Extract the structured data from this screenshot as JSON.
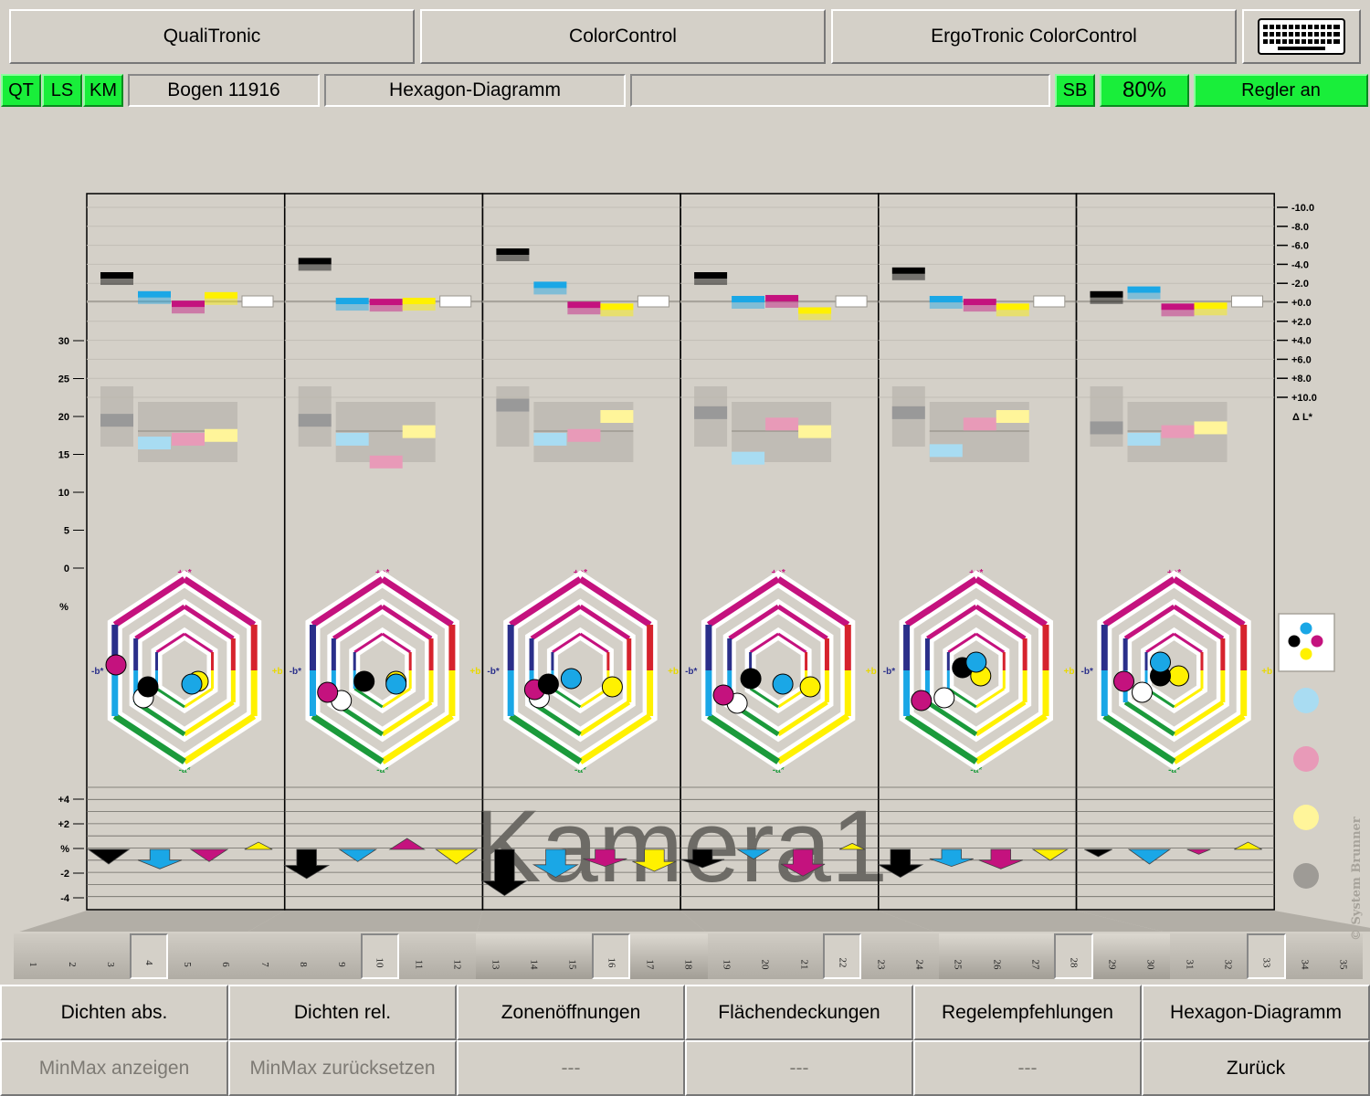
{
  "top_tabs": {
    "qualitronic": "QualiTronic",
    "colorcontrol": "ColorControl",
    "ergotronic": "ErgoTronic ColorControl",
    "keyboard_icon": "keyboard-icon"
  },
  "status_bar": {
    "qt": "QT",
    "ls": "LS",
    "km": "KM",
    "sheet": "Bogen 11916",
    "view": "Hexagon-Diagramm",
    "message": "",
    "sb": "SB",
    "percent": "80%",
    "regler": "Regler an"
  },
  "right_scale": {
    "ticks": [
      "-10.0",
      "-8.0",
      "-6.0",
      "-4.0",
      "-2.0",
      "+0.0",
      "+2.0",
      "+4.0",
      "+6.0",
      "+8.0",
      "+10.0"
    ],
    "label": "Δ L*"
  },
  "left_scale": {
    "ticks": [
      "30",
      "25",
      "20",
      "15",
      "10",
      "5",
      "0"
    ],
    "unit": "%"
  },
  "arrow_scale": {
    "ticks": [
      "+4",
      "+2",
      "%",
      "-2",
      "-4"
    ]
  },
  "hexagon_labels": {
    "top": "+a*",
    "bottom": "-a*",
    "left": "-b*",
    "right": "+b"
  },
  "watermark": "Kamera1",
  "copyright": "© System Brunner",
  "colors": {
    "black": "#000000",
    "cyan": "#1aa7e6",
    "magenta": "#c4127e",
    "yellow": "#fff100",
    "white": "#ffffff",
    "green": "#19ee3a",
    "background": "#d4d0c8"
  },
  "legend_icons": [
    "cmyk-dots-icon",
    "cyan-dot-icon",
    "magenta-dot-icon",
    "yellow-dot-icon",
    "gray-dot-icon"
  ],
  "chart_data": {
    "type": "bar",
    "zones_per_panel": 6,
    "panels": [
      {
        "delta_l": [
          -2.5,
          -0.5,
          0.5,
          -0.4,
          0.0
        ],
        "density": [
          19.5,
          16.5,
          17,
          17.5
        ],
        "hex": {
          "k": [
            -0.4,
            0.3
          ],
          "c": [
            0.08,
            0.25
          ],
          "m": [
            -0.75,
            -0.1
          ],
          "y": [
            0.15,
            0.2
          ],
          "w": [
            -0.45,
            0.5
          ]
        },
        "arrows": [
          -1.2,
          -1.6,
          -1.0,
          0.6,
          0
        ]
      },
      {
        "delta_l": [
          -4.0,
          0.2,
          0.3,
          0.2,
          0.0
        ],
        "density": [
          19.5,
          17,
          14,
          18
        ],
        "hex": {
          "k": [
            -0.2,
            0.2
          ],
          "c": [
            0.15,
            0.25
          ],
          "m": [
            -0.6,
            0.4
          ],
          "y": [
            0.15,
            0.2
          ],
          "w": [
            -0.45,
            0.55
          ]
        },
        "arrows": [
          -2.4,
          -1.0,
          0.9,
          -1.2,
          0
        ]
      },
      {
        "delta_l": [
          -5.0,
          -1.5,
          0.6,
          0.8,
          0.0
        ],
        "density": [
          21.5,
          17,
          17.5,
          20
        ],
        "hex": {
          "k": [
            -0.35,
            0.25
          ],
          "c": [
            -0.1,
            0.15
          ],
          "m": [
            -0.5,
            0.35
          ],
          "y": [
            0.35,
            0.3
          ],
          "w": [
            -0.45,
            0.5
          ]
        },
        "arrows": [
          -3.8,
          -2.3,
          -1.4,
          -1.8,
          0
        ]
      },
      {
        "delta_l": [
          -2.5,
          0.0,
          -0.1,
          1.2,
          0.0
        ],
        "density": [
          20.5,
          14.5,
          19,
          18
        ],
        "hex": {
          "k": [
            -0.3,
            0.15
          ],
          "c": [
            0.05,
            0.25
          ],
          "m": [
            -0.6,
            0.45
          ],
          "y": [
            0.35,
            0.3
          ],
          "w": [
            -0.45,
            0.6
          ]
        },
        "arrows": [
          -1.5,
          -0.8,
          -2.2,
          0.5,
          0
        ]
      },
      {
        "delta_l": [
          -3.0,
          0.0,
          0.3,
          0.8,
          0.0
        ],
        "density": [
          20.5,
          15.5,
          19,
          20
        ],
        "hex": {
          "k": [
            -0.15,
            -0.05
          ],
          "c": [
            0.0,
            -0.15
          ],
          "m": [
            -0.6,
            0.55
          ],
          "y": [
            0.05,
            0.1
          ],
          "w": [
            -0.35,
            0.5
          ]
        },
        "arrows": [
          -2.3,
          -1.4,
          -1.6,
          -0.9,
          0
        ]
      },
      {
        "delta_l": [
          -0.5,
          -1.0,
          0.8,
          0.7,
          0.0
        ],
        "density": [
          18.5,
          17,
          18,
          18.5
        ],
        "hex": {
          "k": [
            -0.15,
            0.1
          ],
          "c": [
            -0.15,
            -0.15
          ],
          "m": [
            -0.55,
            0.2
          ],
          "y": [
            0.05,
            0.1
          ],
          "w": [
            -0.35,
            0.4
          ]
        },
        "arrows": [
          -0.6,
          -1.2,
          -0.4,
          0.6,
          0
        ]
      }
    ]
  },
  "zones": {
    "numbers": [
      "1",
      "2",
      "3",
      "4",
      "5",
      "6",
      "7",
      "8",
      "9",
      "10",
      "11",
      "12",
      "13",
      "14",
      "15",
      "16",
      "17",
      "18",
      "19",
      "20",
      "21",
      "22",
      "23",
      "24",
      "25",
      "26",
      "27",
      "28",
      "29",
      "30",
      "31",
      "32",
      "33",
      "34",
      "35"
    ],
    "shade": [
      0,
      0,
      0,
      1,
      0,
      0,
      0,
      0,
      0,
      1,
      0,
      0,
      2,
      2,
      2,
      1,
      2,
      2,
      0,
      0,
      0,
      1,
      0,
      0,
      2,
      2,
      2,
      1,
      2,
      2,
      0,
      0,
      1,
      0,
      0
    ]
  },
  "bottom_buttons": {
    "row1": [
      "Dichten abs.",
      "Dichten rel.",
      "Zonenöffnungen",
      "Flächendeckungen",
      "Regelempfehlungen",
      "Hexagon-Diagramm"
    ],
    "row2": [
      "MinMax anzeigen",
      "MinMax zurücksetzen",
      "---",
      "---",
      "---",
      "Zurück"
    ]
  }
}
